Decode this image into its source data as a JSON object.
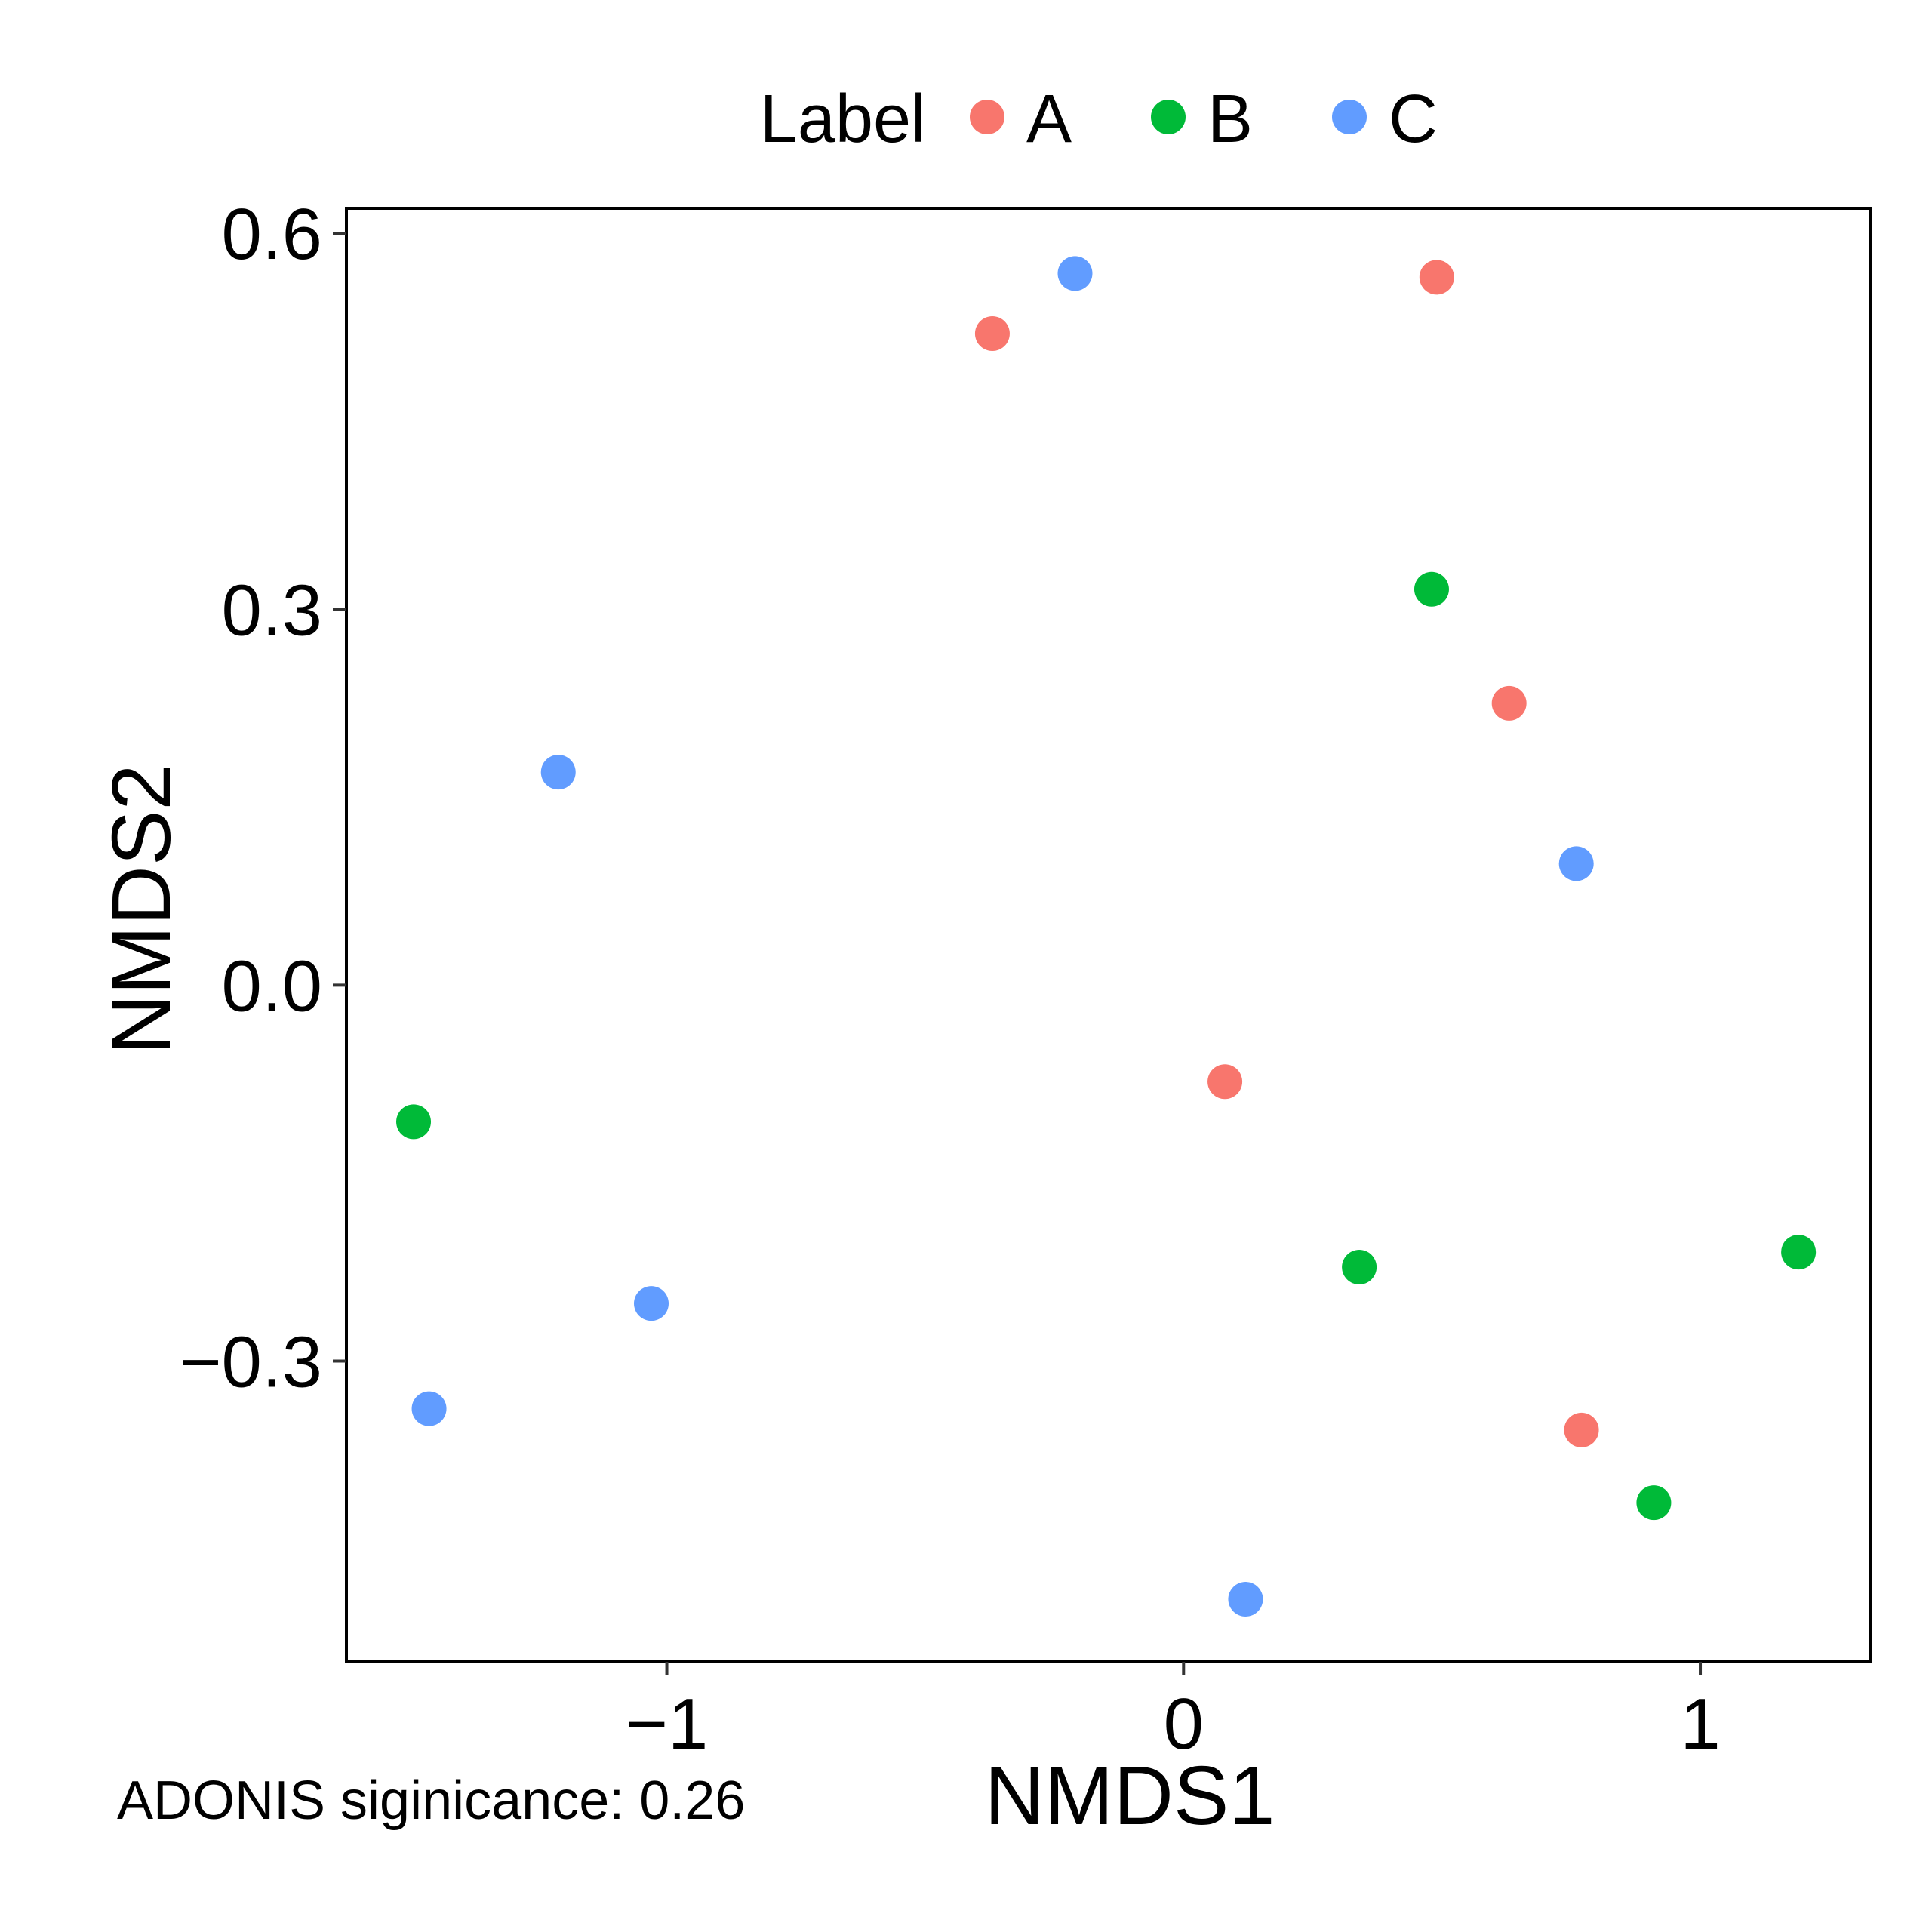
{
  "chart_data": {
    "type": "scatter",
    "xlabel": "NMDS1",
    "ylabel": "NMDS2",
    "xlim": [
      -1.62,
      1.33
    ],
    "ylim": [
      -0.54,
      0.62
    ],
    "x_ticks": [
      -1,
      0,
      1
    ],
    "x_tick_labels": [
      "−1",
      "0",
      "1"
    ],
    "y_ticks": [
      -0.3,
      0.0,
      0.3,
      0.6
    ],
    "y_tick_labels": [
      "−0.3",
      "0.0",
      "0.3",
      "0.6"
    ],
    "grid": false,
    "legend": {
      "title": "Label",
      "position": "top"
    },
    "annotation": "ADONIS siginicance: 0.26",
    "series": [
      {
        "name": "A",
        "color": "#F8766D",
        "points": [
          {
            "x": -0.37,
            "y": 0.52
          },
          {
            "x": 0.49,
            "y": 0.565
          },
          {
            "x": 0.63,
            "y": 0.225
          },
          {
            "x": 0.08,
            "y": -0.077
          },
          {
            "x": 0.77,
            "y": -0.355
          }
        ]
      },
      {
        "name": "B",
        "color": "#00BA38",
        "points": [
          {
            "x": 0.48,
            "y": 0.316
          },
          {
            "x": -1.49,
            "y": -0.109
          },
          {
            "x": 0.34,
            "y": -0.225
          },
          {
            "x": 1.19,
            "y": -0.213
          },
          {
            "x": 0.91,
            "y": -0.413
          }
        ]
      },
      {
        "name": "C",
        "color": "#619CFF",
        "points": [
          {
            "x": -0.21,
            "y": 0.568
          },
          {
            "x": -1.21,
            "y": 0.17
          },
          {
            "x": 0.76,
            "y": 0.097
          },
          {
            "x": -1.03,
            "y": -0.254
          },
          {
            "x": -1.46,
            "y": -0.338
          },
          {
            "x": 0.12,
            "y": -0.49
          }
        ]
      }
    ]
  }
}
